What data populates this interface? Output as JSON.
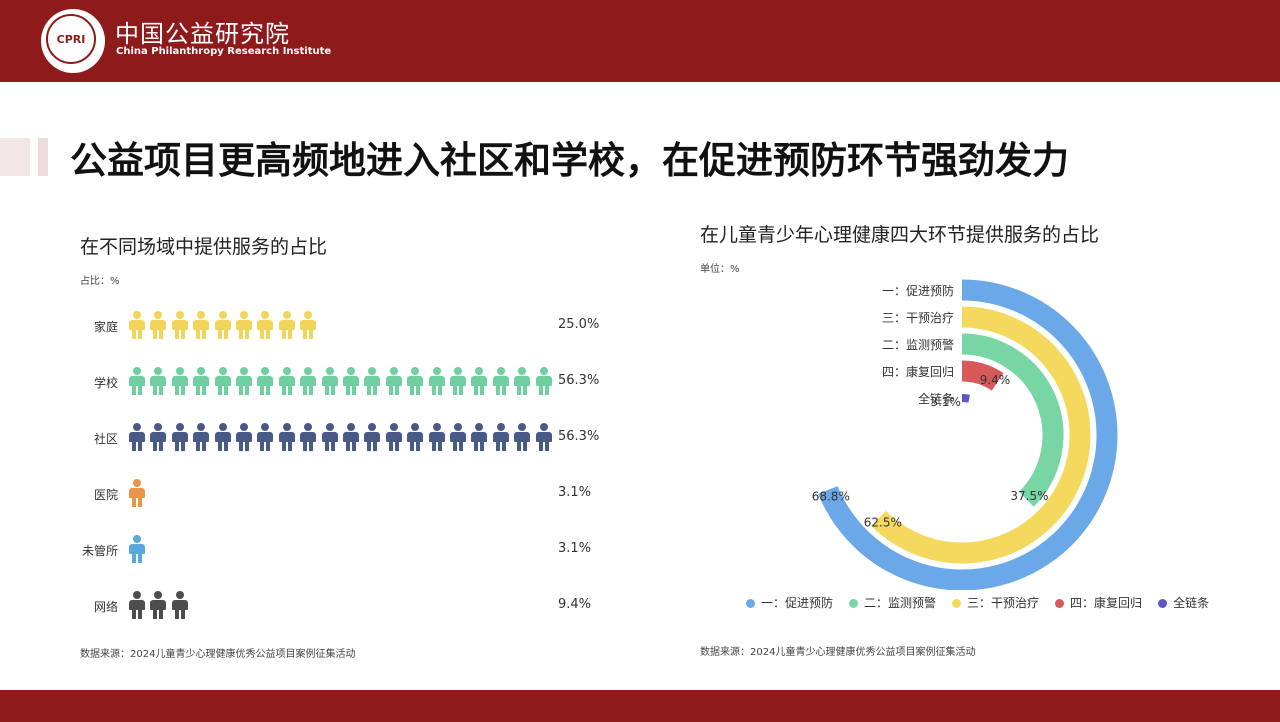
{
  "header": {
    "org_name_cn": "中国公益研究院",
    "org_name_en": "China Philanthropy Research Institute",
    "logo_text": "CPRI"
  },
  "main_title": "公益项目更高频地进入社区和学校，在促进预防环节强劲发力",
  "left_panel": {
    "subtitle": "在不同场域中提供服务的占比",
    "unit": "占比：%",
    "source": "数据来源：2024儿童青少心理健康优秀公益项目案例征集活动"
  },
  "right_panel": {
    "subtitle": "在儿童青少年心理健康四大环节提供服务的占比",
    "unit": "单位：%",
    "source": "数据来源：2024儿童青少心理健康优秀公益项目案例征集活动"
  },
  "chart_data": [
    {
      "type": "bar",
      "title": "在不同场域中提供服务的占比",
      "unit": "占比：%",
      "categories": [
        "家庭",
        "学校",
        "社区",
        "医院",
        "未管所",
        "网络"
      ],
      "values": [
        25.0,
        56.3,
        56.3,
        3.1,
        3.1,
        9.4
      ],
      "value_labels": [
        "25.0%",
        "56.3%",
        "56.3%",
        "3.1%",
        "3.1%",
        "9.4%"
      ],
      "icon_counts": [
        9,
        20,
        20,
        1,
        1,
        3
      ],
      "colors": [
        "#f2d45c",
        "#6fcfa0",
        "#4a5a86",
        "#e8954a",
        "#5aa8dc",
        "#4d4d4d"
      ]
    },
    {
      "type": "pie",
      "subtype": "radial-bar",
      "title": "在儿童青少年心理健康四大环节提供服务的占比",
      "unit": "单位：%",
      "categories": [
        "一：促进预防",
        "三：干预治疗",
        "二：监测预警",
        "四：康复回归",
        "全链条"
      ],
      "values": [
        68.8,
        62.5,
        37.5,
        9.4,
        3.1
      ],
      "value_labels": [
        "68.8%",
        "62.5%",
        "37.5%",
        "9.4%",
        "3.1%"
      ],
      "colors": [
        "#6aa8e8",
        "#f5d95e",
        "#78d6a4",
        "#d65a5a",
        "#5c55c4"
      ],
      "legend": [
        "一：促进预防",
        "二：监测预警",
        "三：干预治疗",
        "四：康复回归",
        "全链条"
      ],
      "legend_colors": [
        "#6aa8e8",
        "#78d6a4",
        "#f5d95e",
        "#d65a5a",
        "#5c55c4"
      ],
      "legend_position": "bottom"
    }
  ]
}
